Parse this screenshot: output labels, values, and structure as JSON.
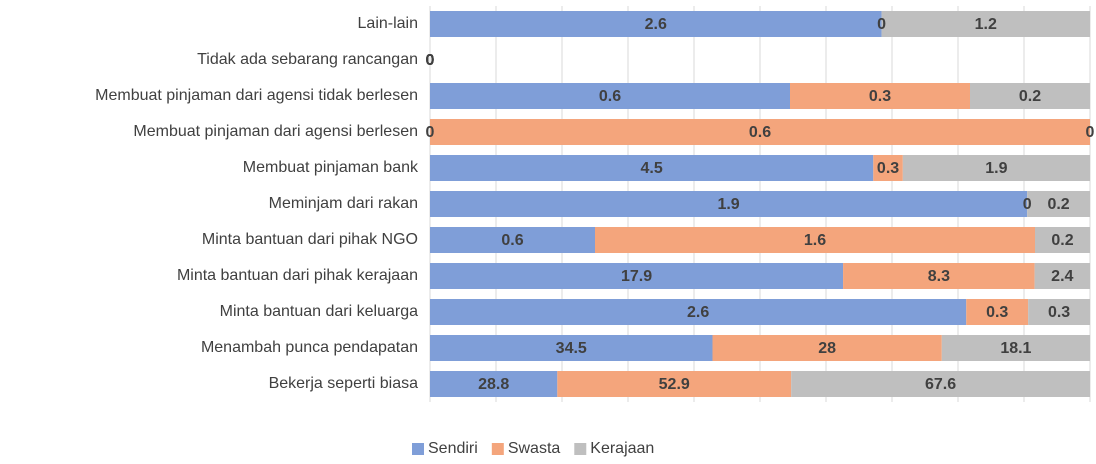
{
  "chart_data": {
    "type": "bar",
    "stacked": "percent",
    "orientation": "horizontal",
    "categories": [
      "Lain-lain",
      "Tidak ada sebarang rancangan",
      "Membuat pinjaman dari agensi tidak berlesen",
      "Membuat pinjaman dari agensi berlesen",
      "Membuat pinjaman bank",
      "Meminjam dari rakan",
      "Minta bantuan dari pihak NGO",
      "Minta bantuan dari pihak kerajaan",
      "Minta bantuan dari keluarga",
      "Menambah punca pendapatan",
      "Bekerja seperti biasa"
    ],
    "series": [
      {
        "name": "Sendiri",
        "color": "#7f9ed8",
        "values": [
          2.6,
          0,
          0.6,
          0,
          4.5,
          1.9,
          0.6,
          17.9,
          2.6,
          34.5,
          28.8
        ]
      },
      {
        "name": "Swasta",
        "color": "#f4a57c",
        "values": [
          0,
          0,
          0.3,
          0.6,
          0.3,
          0,
          1.6,
          8.3,
          0.3,
          28,
          52.9
        ]
      },
      {
        "name": "Kerajaan",
        "color": "#bfbfbf",
        "values": [
          1.2,
          0,
          0.2,
          0,
          1.9,
          0.2,
          0.2,
          2.4,
          0.3,
          18.1,
          67.6
        ]
      }
    ],
    "grid": true,
    "legend": "bottom"
  }
}
